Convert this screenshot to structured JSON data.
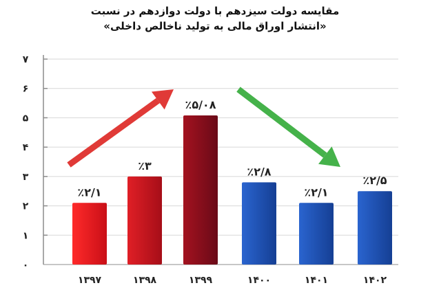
{
  "chart_data": {
    "type": "bar",
    "title": "مقایسه دولت سیزدهم با دولت دوازدهم در نسبت",
    "subtitle": "«انتشار اوراق مالی به تولید ناخالص داخلی»",
    "categories": [
      "۱۳۹۷",
      "۱۳۹۸",
      "۱۳۹۹",
      "۱۴۰۰",
      "۱۴۰۱",
      "۱۴۰۲"
    ],
    "values": [
      2.1,
      3,
      5.08,
      2.8,
      2.1,
      2.5
    ],
    "data_labels": [
      "٪۲/۱",
      "٪۳",
      "٪۵/۰۸",
      "٪۲/۸",
      "٪۲/۱",
      "٪۲/۵"
    ],
    "y_ticks": [
      0,
      1,
      2,
      3,
      4,
      5,
      6,
      7
    ],
    "y_tick_labels": [
      "۰",
      "۱",
      "۲",
      "۳",
      "۴",
      "۵",
      "۶",
      "۷"
    ],
    "ylim": [
      0,
      7
    ],
    "grid": true,
    "colors": {
      "bar_1397": "#e8151b",
      "bar_1398": "#cc141c",
      "bar_1399": "#8a0d1d",
      "bar_blue": "#1d4fb0",
      "arrow_up": "#e03a37",
      "arrow_down": "#45b24a",
      "grid": "#d7d7d7",
      "axis": "#8c8c8c",
      "text": "#222222"
    }
  }
}
